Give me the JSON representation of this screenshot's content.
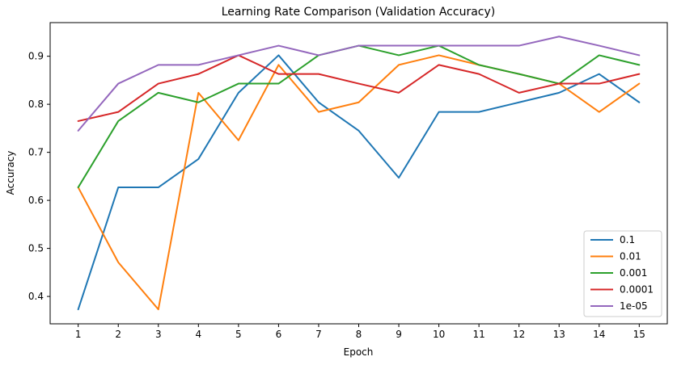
{
  "chart_data": {
    "type": "line",
    "title": "Learning Rate Comparison (Validation Accuracy)",
    "xlabel": "Epoch",
    "ylabel": "Accuracy",
    "x": [
      1,
      2,
      3,
      4,
      5,
      6,
      7,
      8,
      9,
      10,
      11,
      12,
      13,
      14,
      15
    ],
    "xlim": [
      0.3,
      15.7
    ],
    "ylim": [
      0.343,
      0.97
    ],
    "yticks": [
      0.4,
      0.5,
      0.6,
      0.7,
      0.8,
      0.9
    ],
    "ytick_labels": [
      "0.4",
      "0.5",
      "0.6",
      "0.7",
      "0.8",
      "0.9"
    ],
    "xticks": [
      1,
      2,
      3,
      4,
      5,
      6,
      7,
      8,
      9,
      10,
      11,
      12,
      13,
      14,
      15
    ],
    "xtick_labels": [
      "1",
      "2",
      "3",
      "4",
      "5",
      "6",
      "7",
      "8",
      "9",
      "10",
      "11",
      "12",
      "13",
      "14",
      "15"
    ],
    "grid": false,
    "legend_position": "lower-right",
    "series": [
      {
        "name": "0.1",
        "color": "#1f77b4",
        "values": [
          0.373,
          0.627,
          0.627,
          0.686,
          0.824,
          0.902,
          0.804,
          0.745,
          0.647,
          0.784,
          0.784,
          0.804,
          0.824,
          0.863,
          0.804
        ]
      },
      {
        "name": "0.01",
        "color": "#ff7f0e",
        "values": [
          0.627,
          0.471,
          0.373,
          0.824,
          0.725,
          0.882,
          0.784,
          0.804,
          0.882,
          0.902,
          0.882,
          0.863,
          0.843,
          0.784,
          0.843
        ]
      },
      {
        "name": "0.001",
        "color": "#2ca02c",
        "values": [
          0.627,
          0.765,
          0.824,
          0.804,
          0.843,
          0.843,
          0.902,
          0.922,
          0.902,
          0.922,
          0.882,
          0.863,
          0.843,
          0.902,
          0.882
        ]
      },
      {
        "name": "0.0001",
        "color": "#d62728",
        "values": [
          0.765,
          0.784,
          0.843,
          0.863,
          0.902,
          0.863,
          0.863,
          0.843,
          0.824,
          0.882,
          0.863,
          0.824,
          0.843,
          0.843,
          0.863
        ]
      },
      {
        "name": "1e-05",
        "color": "#9467bd",
        "values": [
          0.745,
          0.843,
          0.882,
          0.882,
          0.902,
          0.922,
          0.902,
          0.922,
          0.922,
          0.922,
          0.922,
          0.922,
          0.941,
          0.922,
          0.902
        ]
      }
    ]
  }
}
